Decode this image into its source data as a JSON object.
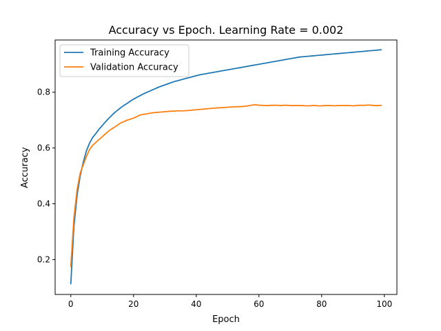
{
  "chart_data": {
    "type": "line",
    "title": "Accuracy vs Epoch. Learning Rate = 0.002",
    "xlabel": "Epoch",
    "ylabel": "Accuracy",
    "xlim": [
      -5,
      104
    ],
    "ylim": [
      0.075,
      0.987
    ],
    "xticks": [
      0,
      20,
      40,
      60,
      80,
      100
    ],
    "yticks": [
      0.2,
      0.4,
      0.6,
      0.8
    ],
    "xtick_labels": [
      "0",
      "20",
      "40",
      "60",
      "80",
      "100"
    ],
    "ytick_labels": [
      "0.2",
      "0.4",
      "0.6",
      "0.8"
    ],
    "grid": false,
    "legend_position": "top-left",
    "series": [
      {
        "name": "Training Accuracy",
        "color": "#1f77b4",
        "x": [
          0,
          1,
          2,
          3,
          4,
          5,
          6,
          7,
          8,
          9,
          10,
          11,
          12,
          13,
          14,
          15,
          16,
          17,
          18,
          19,
          20,
          21,
          22,
          23,
          24,
          25,
          26,
          27,
          28,
          29,
          30,
          31,
          32,
          33,
          34,
          35,
          36,
          37,
          38,
          39,
          40,
          41,
          42,
          43,
          44,
          45,
          46,
          47,
          48,
          49,
          50,
          51,
          52,
          53,
          54,
          55,
          56,
          57,
          58,
          59,
          60,
          61,
          62,
          63,
          64,
          65,
          66,
          67,
          68,
          69,
          70,
          71,
          72,
          73,
          74,
          75,
          76,
          77,
          78,
          79,
          80,
          81,
          82,
          83,
          84,
          85,
          86,
          87,
          88,
          89,
          90,
          91,
          92,
          93,
          94,
          95,
          96,
          97,
          98,
          99
        ],
        "y": [
          0.113,
          0.32,
          0.43,
          0.5,
          0.55,
          0.59,
          0.618,
          0.638,
          0.652,
          0.667,
          0.68,
          0.693,
          0.705,
          0.716,
          0.727,
          0.736,
          0.745,
          0.753,
          0.76,
          0.768,
          0.775,
          0.781,
          0.787,
          0.793,
          0.798,
          0.803,
          0.808,
          0.813,
          0.818,
          0.822,
          0.826,
          0.83,
          0.834,
          0.838,
          0.841,
          0.844,
          0.847,
          0.85,
          0.853,
          0.856,
          0.859,
          0.862,
          0.864,
          0.866,
          0.868,
          0.87,
          0.872,
          0.874,
          0.876,
          0.878,
          0.88,
          0.882,
          0.884,
          0.886,
          0.888,
          0.89,
          0.892,
          0.894,
          0.896,
          0.898,
          0.9,
          0.902,
          0.904,
          0.906,
          0.908,
          0.91,
          0.912,
          0.914,
          0.916,
          0.918,
          0.92,
          0.922,
          0.924,
          0.926,
          0.927,
          0.928,
          0.929,
          0.93,
          0.931,
          0.932,
          0.933,
          0.934,
          0.935,
          0.936,
          0.937,
          0.938,
          0.939,
          0.94,
          0.941,
          0.942,
          0.943,
          0.944,
          0.945,
          0.946,
          0.947,
          0.948,
          0.949,
          0.95,
          0.951,
          0.952
        ]
      },
      {
        "name": "Validation Accuracy",
        "color": "#ff7f0e",
        "x": [
          0,
          1,
          2,
          3,
          4,
          5,
          6,
          7,
          8,
          9,
          10,
          11,
          12,
          13,
          14,
          15,
          16,
          17,
          18,
          19,
          20,
          21,
          22,
          23,
          24,
          25,
          26,
          27,
          28,
          29,
          30,
          31,
          32,
          33,
          34,
          35,
          36,
          37,
          38,
          39,
          40,
          41,
          42,
          43,
          44,
          45,
          46,
          47,
          48,
          49,
          50,
          51,
          52,
          53,
          54,
          55,
          56,
          57,
          58,
          59,
          60,
          61,
          62,
          63,
          64,
          65,
          66,
          67,
          68,
          69,
          70,
          71,
          72,
          73,
          74,
          75,
          76,
          77,
          78,
          79,
          80,
          81,
          82,
          83,
          84,
          85,
          86,
          87,
          88,
          89,
          90,
          91,
          92,
          93,
          94,
          95,
          96,
          97,
          98,
          99
        ],
        "y": [
          0.175,
          0.35,
          0.45,
          0.51,
          0.54,
          0.57,
          0.595,
          0.61,
          0.62,
          0.63,
          0.64,
          0.65,
          0.66,
          0.668,
          0.675,
          0.683,
          0.69,
          0.695,
          0.7,
          0.703,
          0.707,
          0.712,
          0.718,
          0.72,
          0.722,
          0.724,
          0.726,
          0.727,
          0.728,
          0.729,
          0.73,
          0.731,
          0.732,
          0.732,
          0.733,
          0.733,
          0.733,
          0.734,
          0.735,
          0.736,
          0.737,
          0.738,
          0.739,
          0.74,
          0.741,
          0.742,
          0.743,
          0.744,
          0.744,
          0.745,
          0.746,
          0.747,
          0.747,
          0.748,
          0.748,
          0.749,
          0.75,
          0.752,
          0.754,
          0.755,
          0.753,
          0.753,
          0.752,
          0.752,
          0.753,
          0.753,
          0.753,
          0.752,
          0.753,
          0.753,
          0.752,
          0.752,
          0.752,
          0.752,
          0.752,
          0.751,
          0.751,
          0.752,
          0.752,
          0.751,
          0.751,
          0.752,
          0.752,
          0.752,
          0.751,
          0.752,
          0.752,
          0.752,
          0.752,
          0.752,
          0.751,
          0.752,
          0.753,
          0.753,
          0.753,
          0.754,
          0.753,
          0.752,
          0.752,
          0.753
        ]
      }
    ]
  }
}
